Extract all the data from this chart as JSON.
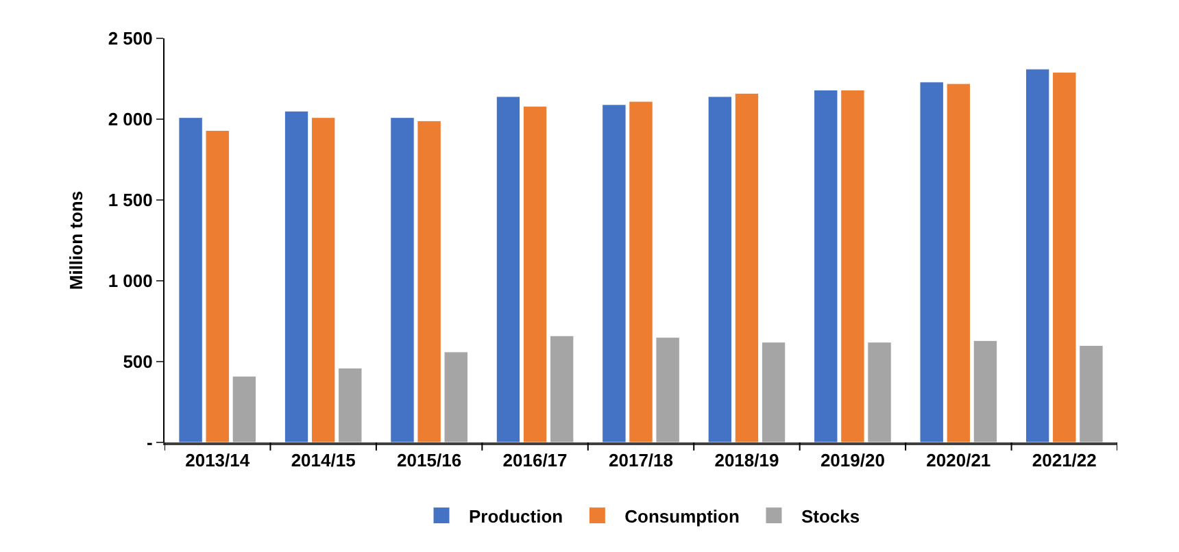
{
  "chart_data": {
    "type": "bar",
    "ylabel": "Million tons",
    "categories": [
      "2013/14",
      "2014/15",
      "2015/16",
      "2016/17",
      "2017/18",
      "2018/19",
      "2019/20",
      "2020/21",
      "2021/22"
    ],
    "series": [
      {
        "name": "Production",
        "color": "#4472c4",
        "values": [
          2010,
          2050,
          2010,
          2140,
          2090,
          2140,
          2180,
          2230,
          2310
        ]
      },
      {
        "name": "Consumption",
        "color": "#ed7d31",
        "values": [
          1930,
          2010,
          1990,
          2080,
          2110,
          2160,
          2180,
          2220,
          2290
        ]
      },
      {
        "name": "Stocks",
        "color": "#a5a5a5",
        "values": [
          410,
          460,
          560,
          660,
          650,
          620,
          620,
          630,
          600
        ]
      }
    ],
    "ylim": [
      0,
      2500
    ],
    "yticks": [
      {
        "value": 0,
        "label": "-"
      },
      500,
      {
        "value": 1000,
        "label": "1 000"
      },
      {
        "value": 1500,
        "label": "1 500"
      },
      {
        "value": 2000,
        "label": "2 000"
      },
      {
        "value": 2500,
        "label": "2 500"
      }
    ],
    "legend": "bottom"
  }
}
